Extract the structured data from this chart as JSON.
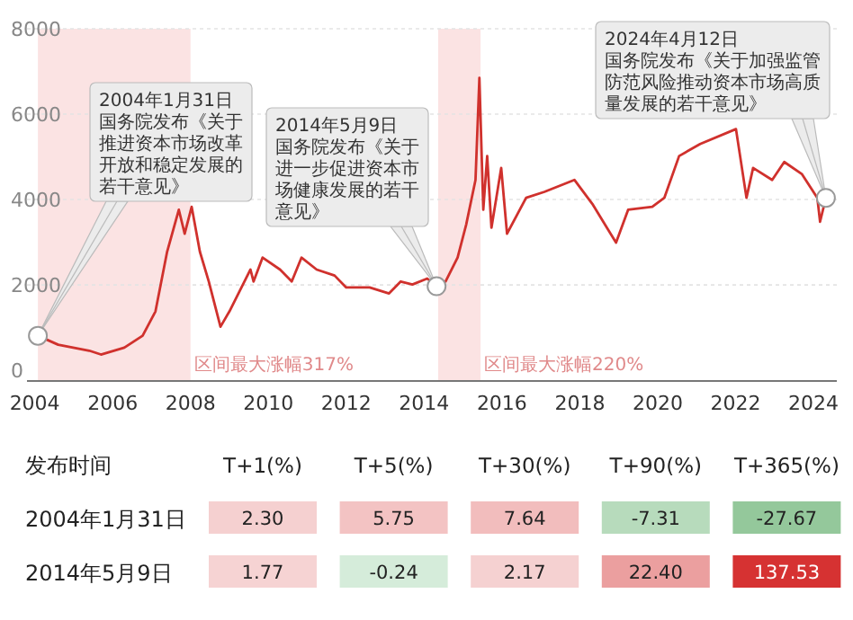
{
  "chart_data": [
    {
      "type": "line",
      "xlim": [
        2003.8,
        2024.6
      ],
      "ylim": [
        -250,
        8000
      ],
      "xticks": [
        2004,
        2006,
        2008,
        2010,
        2012,
        2014,
        2016,
        2018,
        2020,
        2022,
        2024
      ],
      "yticks": [
        0,
        2000,
        4000,
        6000,
        8000
      ],
      "grid": "y",
      "series": [
        {
          "color": "#d0312d",
          "x": [
            2004.08,
            2004.6,
            2005.4,
            2005.7,
            2006.3,
            2006.77,
            2007.1,
            2007.4,
            2007.7,
            2007.85,
            2008.03,
            2008.24,
            2008.47,
            2008.77,
            2009.0,
            2009.54,
            2009.62,
            2009.85,
            2010.3,
            2010.6,
            2010.85,
            2011.24,
            2011.7,
            2012.0,
            2012.6,
            2013.1,
            2013.4,
            2013.7,
            2014.08,
            2014.32,
            2014.55,
            2014.86,
            2015.08,
            2015.32,
            2015.42,
            2015.52,
            2015.62,
            2015.73,
            2015.98,
            2016.13,
            2016.62,
            2017.09,
            2017.86,
            2018.32,
            2018.93,
            2019.24,
            2019.86,
            2020.17,
            2020.55,
            2021.09,
            2022.01,
            2022.28,
            2022.45,
            2022.94,
            2023.25,
            2023.7,
            2024.1,
            2024.17,
            2024.32
          ],
          "values": [
            810,
            600,
            460,
            370,
            530,
            810,
            1380,
            2780,
            3760,
            3200,
            3830,
            2780,
            2080,
            1020,
            1380,
            2360,
            2080,
            2640,
            2360,
            2080,
            2640,
            2360,
            2220,
            1940,
            1940,
            1800,
            2080,
            2010,
            2150,
            1970,
            2080,
            2640,
            3410,
            4460,
            6850,
            3760,
            5020,
            3340,
            4740,
            3200,
            4040,
            4180,
            4460,
            3900,
            2990,
            3760,
            3830,
            4040,
            5020,
            5300,
            5650,
            4040,
            4740,
            4460,
            4880,
            4600,
            4040,
            3480,
            4040
          ]
        }
      ],
      "bands": [
        {
          "axis": "x",
          "from": 2004.08,
          "to": 2008.0,
          "label": "区间最大涨幅317%",
          "color": "#fbe3e3"
        },
        {
          "axis": "x",
          "from": 2014.36,
          "to": 2015.45,
          "label": "区间最大涨幅220%",
          "color": "#fbe3e3"
        }
      ],
      "annotations": [
        "2004年1月31日",
        {
          "text": "国务院发布《关于推进资本市场改革开放和稳定发展的若干意见》",
          "x": 2004.08,
          "y": 810
        },
        "2014年5月9日",
        {
          "text": "国务院发布《关于进一步促进资本市场健康发展的若干意见》",
          "x": 2014.32,
          "y": 1970
        },
        "2024年4月12日",
        {
          "text": "国务院发布《关于加强监管防范风险推动资本市场高质量发展的若干意见》",
          "x": 2024.32,
          "y": 4040
        }
      ]
    },
    {
      "type": "heatmap",
      "ylabel": "发布时间",
      "categories": [
        "T+1(%)",
        "T+5(%)",
        "T+30(%)",
        "T+90(%)",
        "T+365(%)"
      ],
      "y_categories": [
        "2004年1月31日",
        "2014年5月9日"
      ],
      "cells": [
        [
          2.3,
          5.75,
          7.64,
          -7.31,
          -27.67
        ],
        [
          1.77,
          -0.24,
          2.17,
          22.4,
          137.53
        ]
      ],
      "cell_labels": [
        [
          "2.30",
          "5.75",
          "7.64",
          "-7.31",
          "-27.67"
        ],
        [
          "1.77",
          "-0.24",
          "2.17",
          "22.40",
          "137.53"
        ]
      ]
    }
  ]
}
